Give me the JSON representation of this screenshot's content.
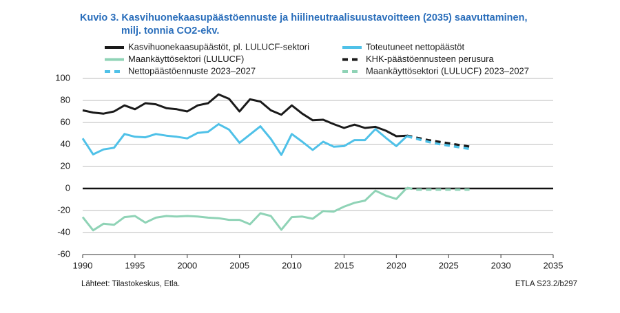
{
  "chart_data": {
    "type": "line",
    "title": "Kuvio 3. Kasvihuonekaasupäästöennuste ja hiilineutraalisuustavoitteen (2035) saavuttaminen,",
    "subtitle": "milj. tonnia CO2-ekv.",
    "source": "Lähteet: Tilastokeskus, Etla.",
    "code": "ETLA S23.2/b297",
    "xlim": [
      1990,
      2035
    ],
    "xticks": [
      1990,
      1995,
      2000,
      2005,
      2010,
      2015,
      2020,
      2025,
      2030,
      2035
    ],
    "ylim": [
      -60,
      100
    ],
    "yticks": [
      -60,
      -40,
      -20,
      0,
      20,
      40,
      60,
      80,
      100
    ],
    "grid": true,
    "series": [
      {
        "name": "Kasvihuonekaasupäästöt, pl. LULUCF-sektori",
        "color": "#1a1a1a",
        "dashed": false,
        "x": [
          1990,
          1991,
          1992,
          1993,
          1994,
          1995,
          1996,
          1997,
          1998,
          1999,
          2000,
          2001,
          2002,
          2003,
          2004,
          2005,
          2006,
          2007,
          2008,
          2009,
          2010,
          2011,
          2012,
          2013,
          2014,
          2015,
          2016,
          2017,
          2018,
          2019,
          2020,
          2021
        ],
        "values": [
          71,
          69,
          68,
          70,
          75.5,
          72,
          77.5,
          76.5,
          73,
          72,
          70,
          75.5,
          77.5,
          85.5,
          81.5,
          70,
          81,
          79,
          71,
          67,
          75.5,
          68,
          62,
          62.5,
          58.5,
          55,
          58,
          55,
          56,
          52.5,
          47.5,
          48
        ]
      },
      {
        "name": "Toteutuneet nettopäästöt",
        "color": "#4fc1e8",
        "dashed": false,
        "x": [
          1990,
          1991,
          1992,
          1993,
          1994,
          1995,
          1996,
          1997,
          1998,
          1999,
          2000,
          2001,
          2002,
          2003,
          2004,
          2005,
          2006,
          2007,
          2008,
          2009,
          2010,
          2011,
          2012,
          2013,
          2014,
          2015,
          2016,
          2017,
          2018,
          2019,
          2020,
          2021
        ],
        "values": [
          45.5,
          31,
          35.5,
          37,
          49.5,
          47,
          46.5,
          49.5,
          48,
          47,
          45.5,
          50.5,
          51.5,
          58.5,
          53.5,
          41.5,
          49,
          56.5,
          45,
          30.5,
          49.5,
          42.5,
          35,
          42.5,
          38,
          38.5,
          44,
          44,
          54,
          46,
          38.5,
          47.5
        ]
      },
      {
        "name": "Maankäyttösektori (LULUCF)",
        "color": "#8fd3b6",
        "dashed": false,
        "x": [
          1990,
          1991,
          1992,
          1993,
          1994,
          1995,
          1996,
          1997,
          1998,
          1999,
          2000,
          2001,
          2002,
          2003,
          2004,
          2005,
          2006,
          2007,
          2008,
          2009,
          2010,
          2011,
          2012,
          2013,
          2014,
          2015,
          2016,
          2017,
          2018,
          2019,
          2020,
          2021
        ],
        "values": [
          -26,
          -38,
          -32,
          -33,
          -26,
          -25,
          -31,
          -26.5,
          -25,
          -25.5,
          -25,
          -25.5,
          -26.5,
          -27,
          -28.5,
          -28.5,
          -32.5,
          -22.5,
          -25,
          -37.5,
          -26,
          -25.5,
          -27.5,
          -20.5,
          -21,
          -16.5,
          -13,
          -11,
          -2,
          -6.5,
          -9.5,
          0.5
        ]
      },
      {
        "name": "KHK-päästöennusteen perusura",
        "color": "#1a1a1a",
        "dashed": true,
        "x": [
          2021,
          2022,
          2023,
          2024,
          2025,
          2026,
          2027
        ],
        "values": [
          48,
          46,
          44,
          42.5,
          41,
          39.5,
          38
        ]
      },
      {
        "name": "Nettopäästöennuste 2023–2027",
        "color": "#4fc1e8",
        "dashed": true,
        "x": [
          2021,
          2022,
          2023,
          2024,
          2025,
          2026,
          2027
        ],
        "values": [
          47.5,
          45,
          42.5,
          40.5,
          39,
          37.5,
          36
        ]
      },
      {
        "name": "Maankäyttösektori (LULUCF) 2023–2027",
        "color": "#8fd3b6",
        "dashed": true,
        "x": [
          2021,
          2022,
          2023,
          2024,
          2025,
          2026,
          2027
        ],
        "values": [
          0.5,
          -1,
          -1,
          -1,
          -1,
          -1,
          -1
        ]
      }
    ]
  }
}
